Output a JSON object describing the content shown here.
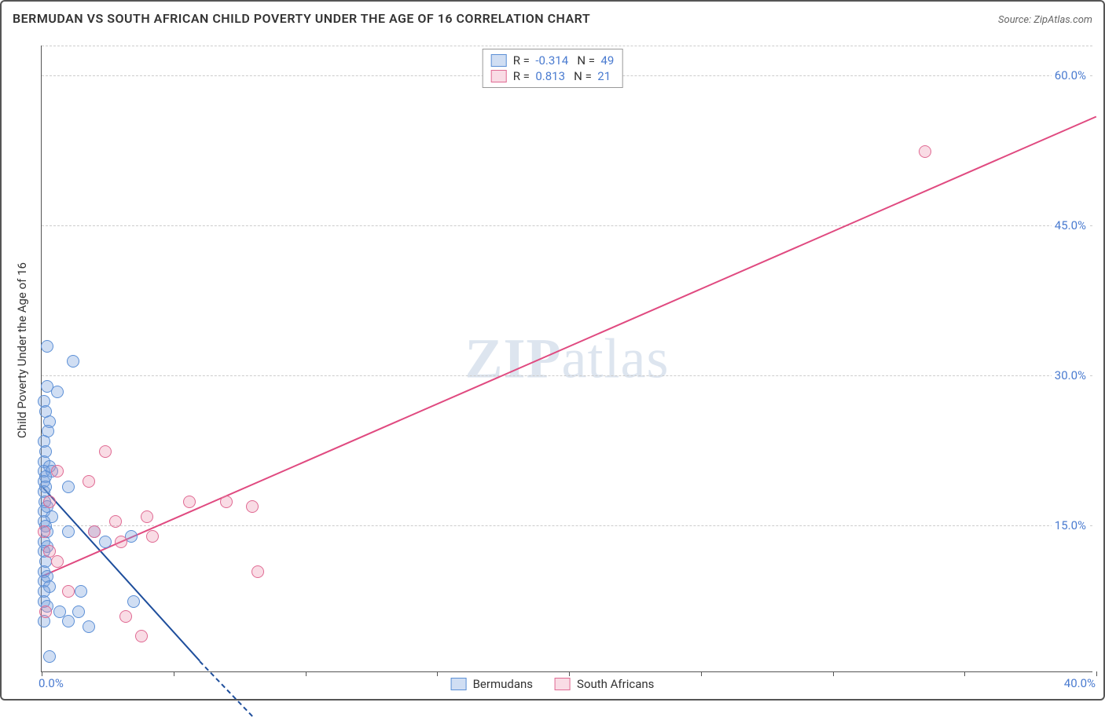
{
  "title": "BERMUDAN VS SOUTH AFRICAN CHILD POVERTY UNDER THE AGE OF 16 CORRELATION CHART",
  "source_label": "Source: ZipAtlas.com",
  "y_axis_label": "Child Poverty Under the Age of 16",
  "watermark": {
    "bold": "ZIP",
    "rest": "atlas"
  },
  "axes": {
    "xmin": 0,
    "xmax": 40,
    "ymin": 0,
    "ymax": 63,
    "xtick_positions": [
      0,
      5,
      10,
      15,
      20,
      25,
      30,
      35,
      40
    ],
    "ytick_labels": [
      {
        "value": 15,
        "text": "15.0%"
      },
      {
        "value": 30,
        "text": "30.0%"
      },
      {
        "value": 45,
        "text": "45.0%"
      },
      {
        "value": 60,
        "text": "60.0%"
      }
    ],
    "x_left_label": "0.0%",
    "x_right_label": "40.0%",
    "grid_color": "#cccccc",
    "axis_color": "#555555",
    "tick_label_color": "#4a7bd0"
  },
  "series": {
    "bermudans": {
      "label": "Bermudans",
      "fill": "rgba(120,160,220,0.35)",
      "stroke": "#5b8fd6",
      "line_color": "#1e4e9c",
      "R": "-0.314",
      "N": "49",
      "regression": {
        "x1": 0,
        "y1": 19,
        "x2": 6,
        "y2": 1.5,
        "dash_extend": {
          "x2": 8,
          "y2": -4
        }
      },
      "points": [
        [
          0.2,
          32.5
        ],
        [
          1.2,
          31
        ],
        [
          0.2,
          28.5
        ],
        [
          0.6,
          28
        ],
        [
          0.1,
          27
        ],
        [
          0.15,
          26
        ],
        [
          0.3,
          25
        ],
        [
          0.25,
          24
        ],
        [
          0.1,
          23
        ],
        [
          0.15,
          22
        ],
        [
          0.1,
          21
        ],
        [
          0.3,
          20.5
        ],
        [
          0.1,
          20
        ],
        [
          0.4,
          20
        ],
        [
          0.15,
          19.5
        ],
        [
          0.1,
          19
        ],
        [
          0.15,
          18.5
        ],
        [
          1.0,
          18.5
        ],
        [
          0.1,
          18
        ],
        [
          0.12,
          17
        ],
        [
          0.2,
          16.5
        ],
        [
          0.1,
          16
        ],
        [
          0.4,
          15.5
        ],
        [
          0.1,
          15
        ],
        [
          0.15,
          14.5
        ],
        [
          0.2,
          14
        ],
        [
          1.0,
          14
        ],
        [
          2.0,
          14
        ],
        [
          0.1,
          13
        ],
        [
          0.2,
          12.5
        ],
        [
          2.4,
          13
        ],
        [
          3.4,
          13.5
        ],
        [
          0.1,
          12
        ],
        [
          0.15,
          11
        ],
        [
          0.1,
          10
        ],
        [
          0.2,
          9.5
        ],
        [
          0.1,
          9
        ],
        [
          0.3,
          8.5
        ],
        [
          0.1,
          8
        ],
        [
          1.5,
          8
        ],
        [
          0.1,
          7
        ],
        [
          0.2,
          6.5
        ],
        [
          0.7,
          6
        ],
        [
          1.4,
          6
        ],
        [
          3.5,
          7
        ],
        [
          0.1,
          5
        ],
        [
          1.0,
          5
        ],
        [
          1.8,
          4.5
        ],
        [
          0.3,
          1.5
        ]
      ]
    },
    "south_africans": {
      "label": "South Africans",
      "fill": "rgba(235,140,170,0.30)",
      "stroke": "#e06a93",
      "line_color": "#e04a80",
      "R": "0.813",
      "N": "21",
      "regression": {
        "x1": 0,
        "y1": 10,
        "x2": 40,
        "y2": 56
      },
      "points": [
        [
          0.6,
          20
        ],
        [
          2.4,
          22
        ],
        [
          1.8,
          19
        ],
        [
          0.3,
          17
        ],
        [
          2.0,
          14
        ],
        [
          2.8,
          15
        ],
        [
          4.0,
          15.5
        ],
        [
          0.1,
          14
        ],
        [
          3.0,
          13
        ],
        [
          4.2,
          13.5
        ],
        [
          5.6,
          17
        ],
        [
          7.0,
          17
        ],
        [
          8.0,
          16.5
        ],
        [
          8.2,
          10
        ],
        [
          0.3,
          12
        ],
        [
          0.6,
          11
        ],
        [
          1.0,
          8
        ],
        [
          3.2,
          5.5
        ],
        [
          3.8,
          3.5
        ],
        [
          0.15,
          6
        ],
        [
          33.5,
          52
        ]
      ]
    }
  },
  "legend_top": {
    "rows": [
      {
        "series": "bermudans"
      },
      {
        "series": "south_africans"
      }
    ]
  }
}
